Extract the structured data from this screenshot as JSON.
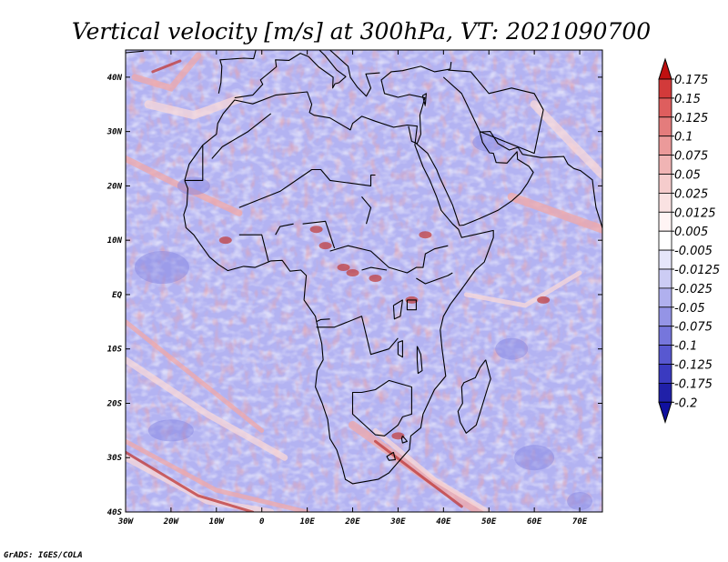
{
  "title": "Vertical velocity [m/s] at 300hPa, VT: 2021090700",
  "footer": "GrADS: IGES/COLA",
  "map": {
    "projection": "latlon",
    "lon_range": [
      -30,
      75
    ],
    "lat_range": [
      -40,
      45
    ],
    "lon_ticks": [
      {
        "value": -30,
        "label": "30W"
      },
      {
        "value": -20,
        "label": "20W"
      },
      {
        "value": -10,
        "label": "10W"
      },
      {
        "value": 0,
        "label": "0"
      },
      {
        "value": 10,
        "label": "10E"
      },
      {
        "value": 20,
        "label": "20E"
      },
      {
        "value": 30,
        "label": "30E"
      },
      {
        "value": 40,
        "label": "40E"
      },
      {
        "value": 50,
        "label": "50E"
      },
      {
        "value": 60,
        "label": "60E"
      },
      {
        "value": 70,
        "label": "70E"
      }
    ],
    "lat_ticks": [
      {
        "value": 40,
        "label": "40N"
      },
      {
        "value": 30,
        "label": "30N"
      },
      {
        "value": 20,
        "label": "20N"
      },
      {
        "value": 10,
        "label": "10N"
      },
      {
        "value": 0,
        "label": "EQ"
      },
      {
        "value": -10,
        "label": "10S"
      },
      {
        "value": -20,
        "label": "20S"
      },
      {
        "value": -30,
        "label": "30S"
      },
      {
        "value": -40,
        "label": "40S"
      }
    ],
    "field_colors": {
      "background": "#b3b3f2",
      "negative": [
        "#d8d8f8",
        "#a6a6ee",
        "#8080e0"
      ],
      "positive": [
        "#f8d8d8",
        "#f0a8a8",
        "#c04040"
      ],
      "coast": "#000000"
    }
  },
  "colorbar": {
    "levels": [
      "0.175",
      "0.15",
      "0.125",
      "0.1",
      "0.075",
      "0.05",
      "0.025",
      "0.0125",
      "0.005",
      "-0.005",
      "-0.0125",
      "-0.025",
      "-0.05",
      "-0.075",
      "-0.1",
      "-0.125",
      "-0.175",
      "-0.2"
    ],
    "colors": [
      "#c01010",
      "#d23a3a",
      "#de5e5e",
      "#e47c7c",
      "#eb9a9a",
      "#f0b4b4",
      "#f5cccc",
      "#fae2e2",
      "#fff4f4",
      "#ffffff",
      "#e6e6fa",
      "#ccccf4",
      "#b0b0ee",
      "#9494e6",
      "#7676dc",
      "#5858d0",
      "#3a3ac0",
      "#2020a8",
      "#1010a0"
    ]
  }
}
